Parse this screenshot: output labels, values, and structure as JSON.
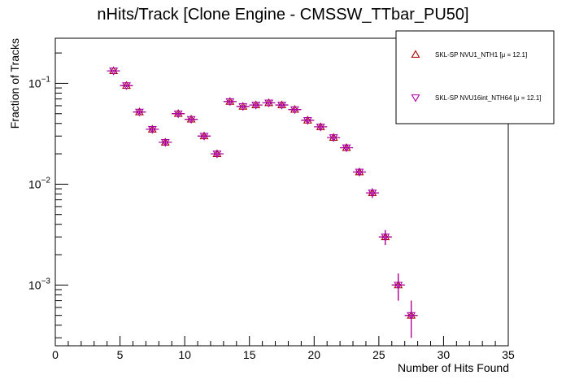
{
  "chart_data": {
    "type": "scatter",
    "title": "nHits/Track [Clone Engine - CMSSW_TTbar_PU50]",
    "xlabel": "Number of Hits Found",
    "ylabel": "Fraction of Tracks",
    "xlim": [
      0,
      35
    ],
    "ylim": [
      0.00025,
      0.28
    ],
    "yscale": "log",
    "grid": false,
    "legend_position": "top-right",
    "x_ticks": [
      "0",
      "5",
      "10",
      "15",
      "20",
      "25",
      "30",
      "35"
    ],
    "y_ticks": [
      {
        "base": "10",
        "exp": "−1",
        "value": 0.1
      },
      {
        "base": "10",
        "exp": "−2",
        "value": 0.01
      },
      {
        "base": "10",
        "exp": "−3",
        "value": 0.001
      }
    ],
    "x": [
      4.5,
      5.5,
      6.5,
      7.5,
      8.5,
      9.5,
      10.5,
      11.5,
      12.5,
      13.5,
      14.5,
      15.5,
      16.5,
      17.5,
      18.5,
      19.5,
      20.5,
      21.5,
      22.5,
      23.5,
      24.5,
      25.5,
      26.5,
      27.5
    ],
    "series": [
      {
        "name": "SKL-SP NVU1_NTH1 [μ = 12.1]",
        "marker": "triangle-up",
        "color": "#aa0000",
        "values": [
          0.133,
          0.095,
          0.052,
          0.035,
          0.026,
          0.05,
          0.044,
          0.03,
          0.02,
          0.066,
          0.059,
          0.061,
          0.064,
          0.061,
          0.055,
          0.043,
          0.037,
          0.029,
          0.023,
          0.0132,
          0.0082,
          0.003,
          0.001,
          0.0005
        ],
        "errors": [
          0.003,
          0.003,
          0.0022,
          0.0018,
          0.0015,
          0.0022,
          0.002,
          0.0017,
          0.0014,
          0.0025,
          0.0023,
          0.0024,
          0.0025,
          0.0024,
          0.0023,
          0.002,
          0.0018,
          0.0016,
          0.0014,
          0.0011,
          0.0009,
          0.0005,
          0.0003,
          0.0002
        ]
      },
      {
        "name": "SKL-SP NVU16int_NTH64 [μ = 12.1]",
        "marker": "triangle-down",
        "color": "#aa00aa",
        "values": [
          0.133,
          0.095,
          0.052,
          0.035,
          0.026,
          0.05,
          0.044,
          0.03,
          0.02,
          0.066,
          0.059,
          0.061,
          0.064,
          0.061,
          0.055,
          0.043,
          0.037,
          0.029,
          0.023,
          0.0132,
          0.0082,
          0.003,
          0.001,
          0.0005
        ],
        "errors": [
          0.003,
          0.003,
          0.0022,
          0.0018,
          0.0015,
          0.0022,
          0.002,
          0.0017,
          0.0014,
          0.0025,
          0.0023,
          0.0024,
          0.0025,
          0.0024,
          0.0023,
          0.002,
          0.0018,
          0.0016,
          0.0014,
          0.0011,
          0.0009,
          0.0005,
          0.0003,
          0.0002
        ]
      }
    ]
  }
}
